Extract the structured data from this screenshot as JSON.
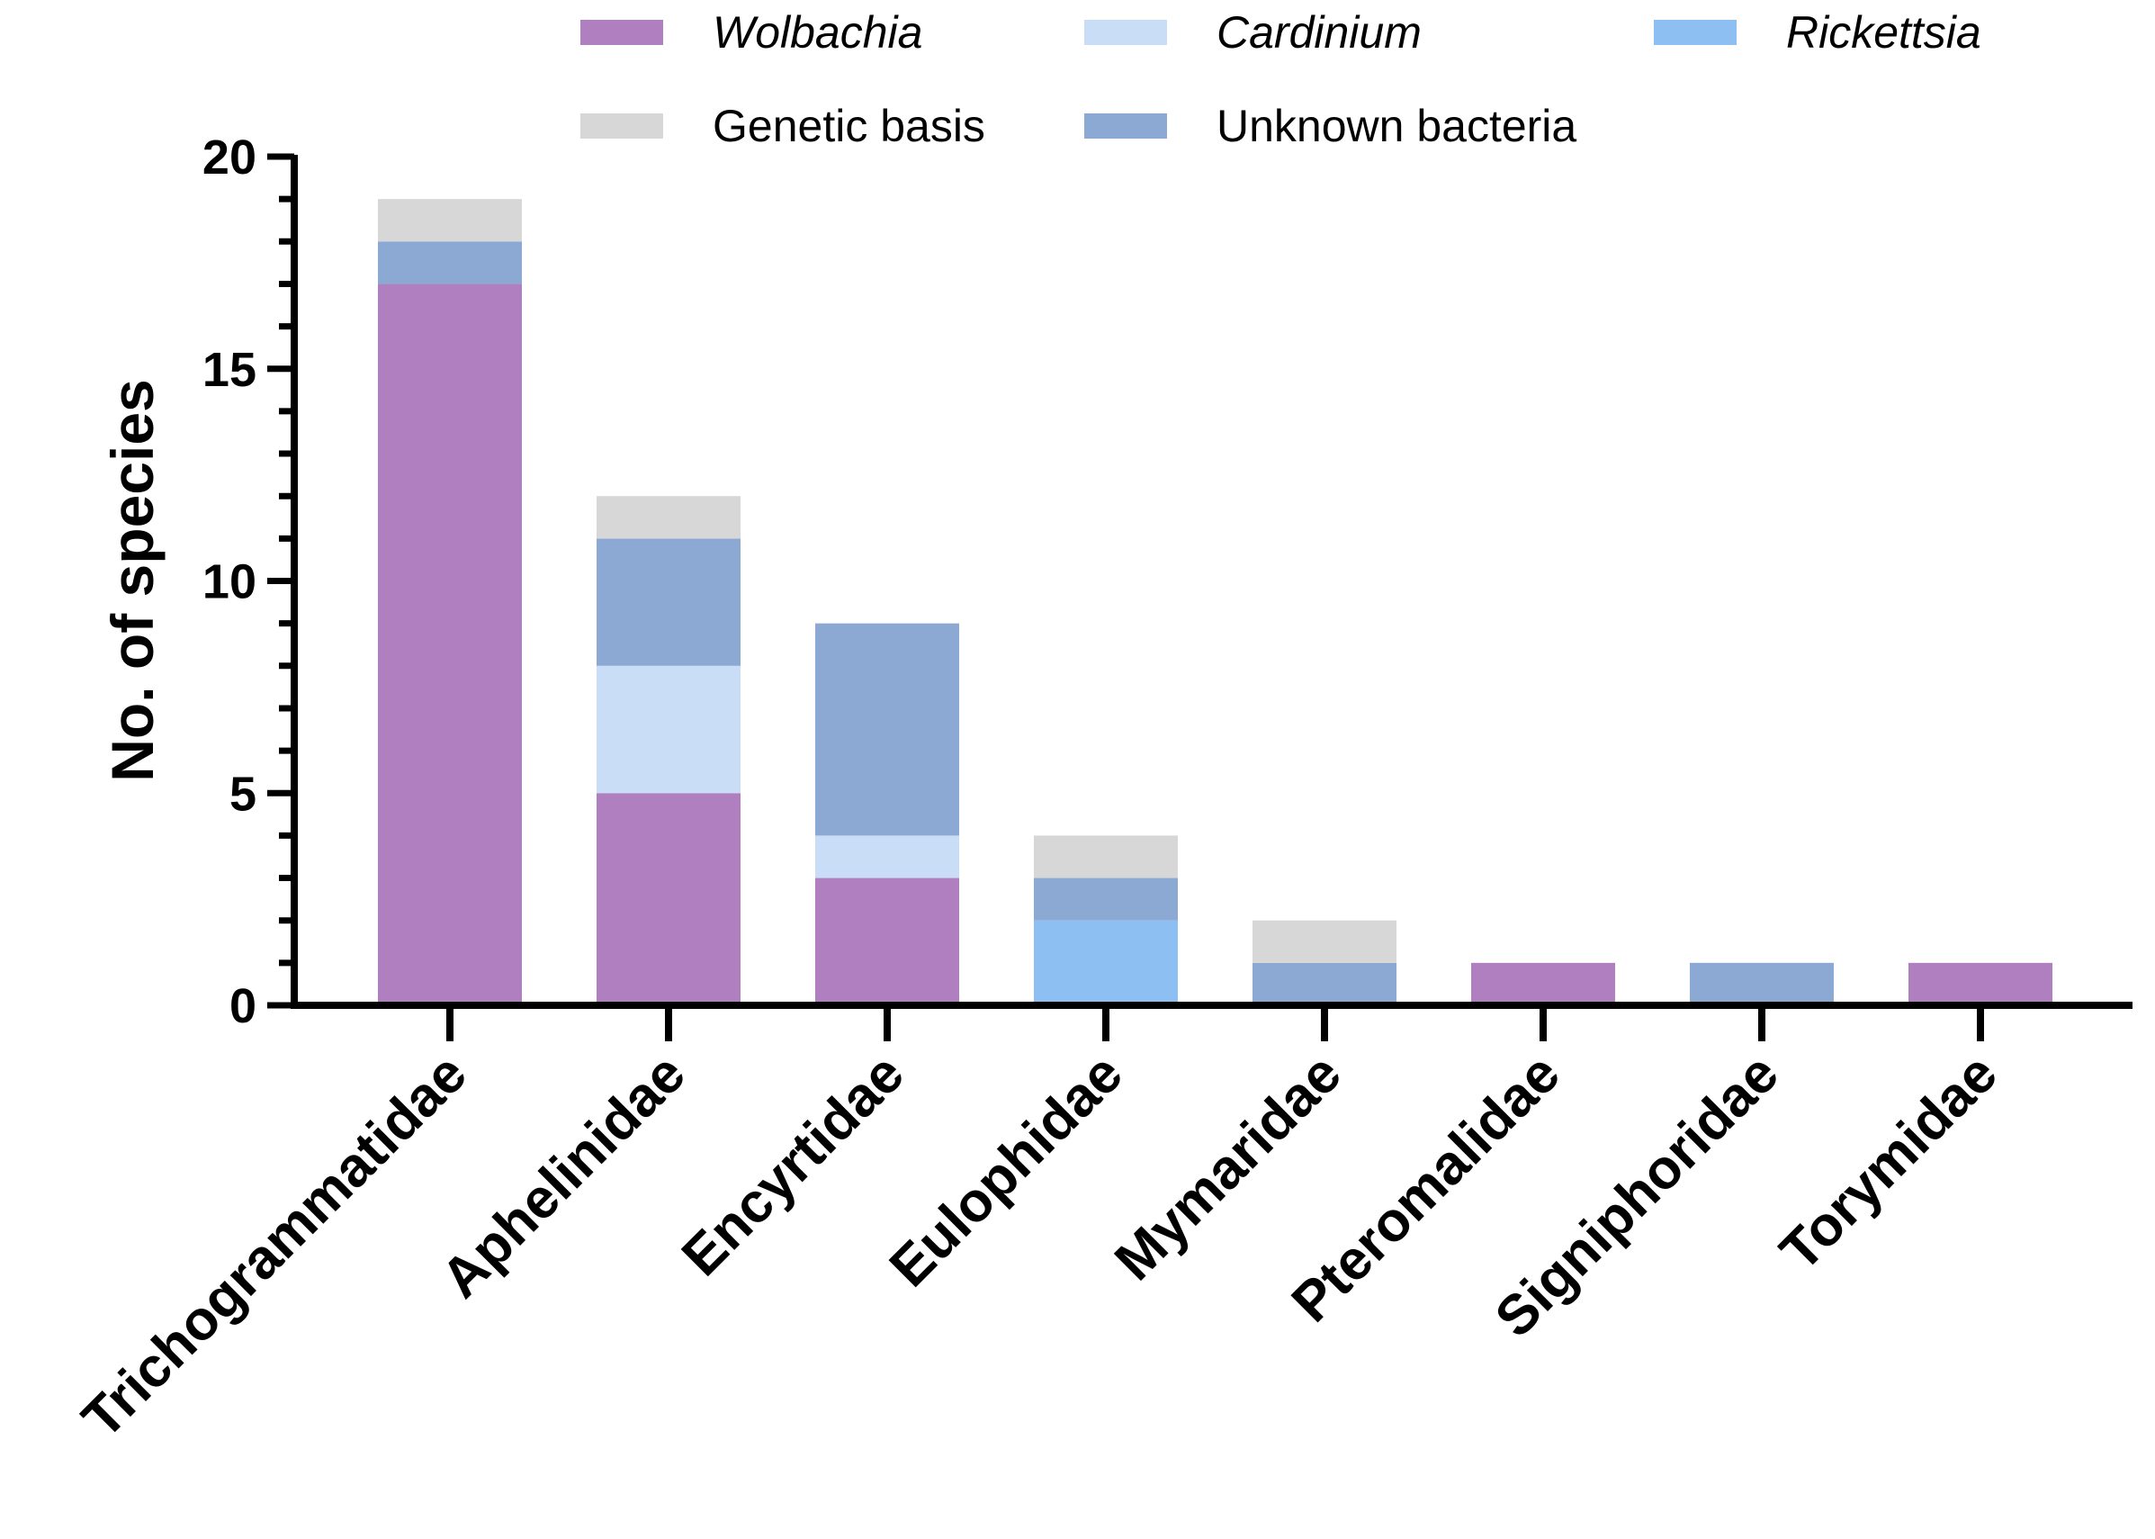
{
  "chart_data": {
    "type": "bar",
    "stacked": true,
    "title": "",
    "xlabel": "",
    "ylabel": "No. of species",
    "ylim": [
      0,
      20
    ],
    "yticks": [
      0,
      5,
      10,
      15,
      20
    ],
    "grid": false,
    "legend_position": "top",
    "categories": [
      "Trichogrammatidae",
      "Aphelinidae",
      "Encyrtidae",
      "Eulophidae",
      "Mymaridae",
      "Pteromalidae",
      "Signiphoridae",
      "Torymidae"
    ],
    "series": [
      {
        "name": "Wolbachia",
        "italic": true,
        "color": "#b07fc0",
        "values": [
          17,
          5,
          3,
          0,
          0,
          1,
          0,
          1
        ]
      },
      {
        "name": "Rickettsia",
        "italic": true,
        "color": "#8dbff2",
        "values": [
          0,
          0,
          0,
          2,
          0,
          0,
          0,
          0
        ]
      },
      {
        "name": "Cardinium",
        "italic": true,
        "color": "#c9ddf7",
        "values": [
          0,
          3,
          1,
          0,
          0,
          0,
          0,
          0
        ]
      },
      {
        "name": "Unknown bacteria",
        "italic": false,
        "color": "#8ca9d3",
        "values": [
          1,
          3,
          5,
          1,
          1,
          0,
          1,
          0
        ]
      },
      {
        "name": "Genetic basis",
        "italic": false,
        "color": "#d7d7d7",
        "values": [
          1,
          1,
          0,
          1,
          1,
          0,
          0,
          0
        ]
      }
    ],
    "legend_order": [
      [
        "Wolbachia",
        "Cardinium",
        "Rickettsia"
      ],
      [
        "Genetic basis",
        "Unknown bacteria"
      ]
    ]
  }
}
